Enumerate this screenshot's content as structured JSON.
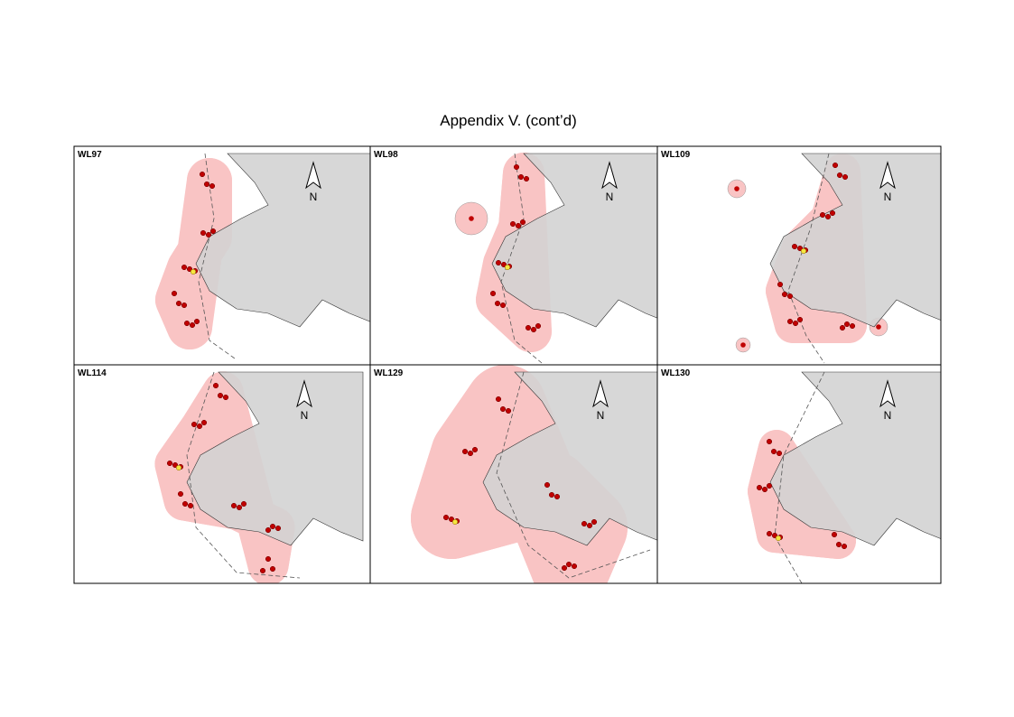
{
  "title": "Appendix V.  (cont’d)",
  "panels": [
    {
      "label": "WL97",
      "north": "N"
    },
    {
      "label": "WL98",
      "north": "N"
    },
    {
      "label": "WL109",
      "north": "N"
    },
    {
      "label": "WL114",
      "north": "N"
    },
    {
      "label": "WL129",
      "north": "N"
    },
    {
      "label": "WL130",
      "north": "N"
    }
  ]
}
